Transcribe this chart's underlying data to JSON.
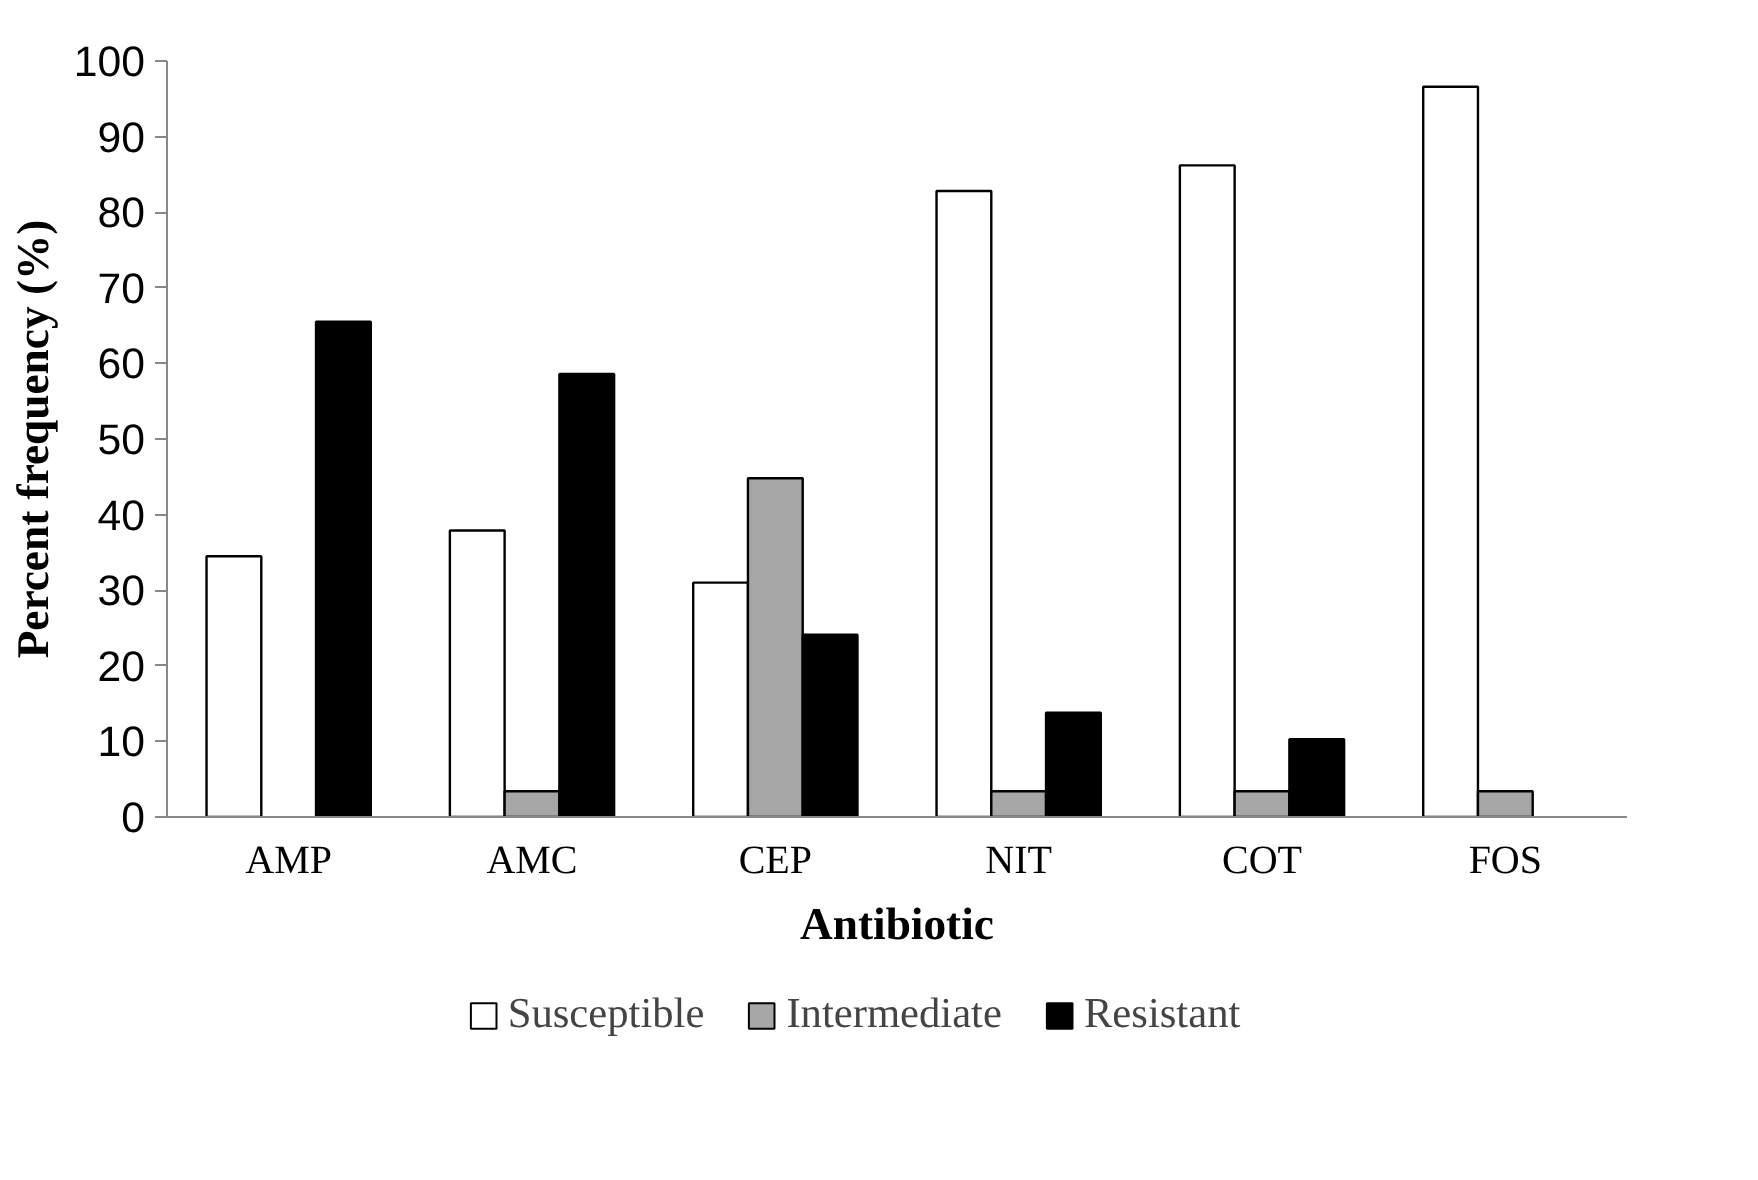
{
  "chart_data": {
    "type": "bar",
    "xlabel": "Antibiotic",
    "ylabel": "Percent frequency (%)",
    "categories": [
      "AMP",
      "AMC",
      "CEP",
      "NIT",
      "COT",
      "FOS"
    ],
    "series": [
      {
        "name": "Susceptible",
        "color": "#ffffff",
        "values": [
          34.5,
          37.9,
          31.0,
          82.8,
          86.2,
          96.6
        ]
      },
      {
        "name": "Intermediate",
        "color": "#a6a6a6",
        "values": [
          0,
          3.4,
          44.8,
          3.4,
          3.4,
          3.4
        ]
      },
      {
        "name": "Resistant",
        "color": "#000000",
        "values": [
          65.5,
          58.6,
          24.1,
          13.8,
          10.3,
          0
        ]
      }
    ],
    "ylim": [
      0,
      100
    ],
    "yticks": [
      0,
      10,
      20,
      30,
      40,
      50,
      60,
      70,
      80,
      90,
      100
    ],
    "grid": false,
    "legend": "bottom"
  }
}
